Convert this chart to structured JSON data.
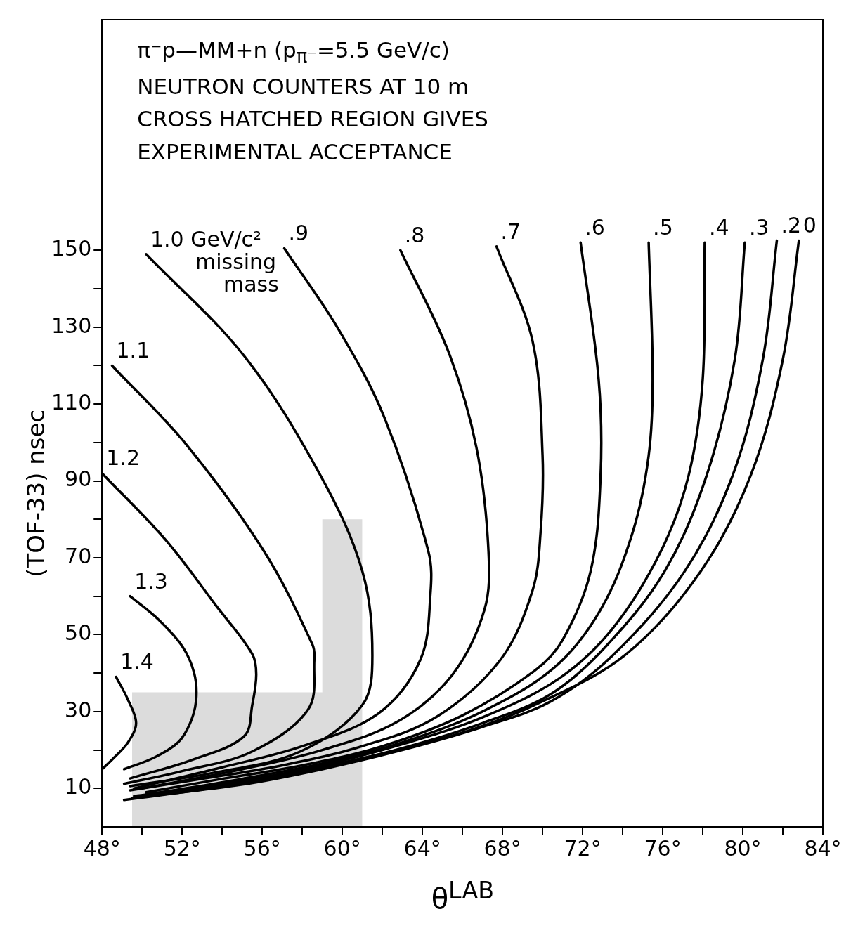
{
  "chart_data": {
    "type": "line",
    "title": "π⁻p—MM+n (p$_{π⁻}$=5.5 GeV/c)",
    "subtitle": "NEUTRON COUNTERS AT 10 m",
    "xlabel": "θ$^{LAB}$",
    "ylabel": "(TOF-33) nsec",
    "annotations": [
      "CROSS HATCHED REGION GIVES EXPERIMENTAL ACCEPTANCE"
    ],
    "xlim": [
      48,
      84
    ],
    "ylim": [
      0,
      210
    ],
    "xticks": [
      {
        "value": 48,
        "label": "48°"
      },
      {
        "value": 50,
        "label": null
      },
      {
        "value": 52,
        "label": "52°"
      },
      {
        "value": 54,
        "label": null
      },
      {
        "value": 56,
        "label": "56°"
      },
      {
        "value": 58,
        "label": null
      },
      {
        "value": 60,
        "label": "60°"
      },
      {
        "value": 62,
        "label": null
      },
      {
        "value": 64,
        "label": "64°"
      },
      {
        "value": 66,
        "label": null
      },
      {
        "value": 68,
        "label": "68°"
      },
      {
        "value": 70,
        "label": null
      },
      {
        "value": 72,
        "label": "72°"
      },
      {
        "value": 74,
        "label": null
      },
      {
        "value": 76,
        "label": "76°"
      },
      {
        "value": 78,
        "label": null
      },
      {
        "value": 80,
        "label": "80°"
      },
      {
        "value": 82,
        "label": null
      },
      {
        "value": 84,
        "label": "84°"
      }
    ],
    "yticks": [
      10,
      {
        "value": 20,
        "label": null
      },
      30,
      {
        "value": 40,
        "label": null
      },
      50,
      {
        "value": 60,
        "label": null
      },
      70,
      {
        "value": 80,
        "label": null
      },
      90,
      {
        "value": 100,
        "label": null
      },
      110,
      {
        "value": 120,
        "label": null
      },
      130,
      {
        "value": 140,
        "label": null
      },
      150
    ],
    "grid": false,
    "legend": false,
    "marker": "none",
    "line_style": "solid",
    "series": [
      {
        "type": "area",
        "color": "#dcdcdc",
        "x": [
          49.5,
          59,
          59,
          61,
          61
        ],
        "values": [
          35,
          35,
          80,
          80,
          0
        ]
      },
      {
        "name": "1.4",
        "color": "#000000",
        "x": [
          48.7,
          49.3,
          49.7,
          49.3,
          48.6,
          48
        ],
        "values": [
          39,
          33,
          27,
          22,
          18,
          15
        ]
      },
      {
        "name": "1.3",
        "color": "#000000",
        "x": [
          49.4,
          50.8,
          52,
          52.6,
          52.7,
          52.4,
          51.8,
          50.6,
          49.1
        ],
        "values": [
          60,
          54,
          47,
          40,
          33,
          27,
          22,
          18,
          15
        ]
      },
      {
        "name": "1.2",
        "color": "#000000",
        "x": [
          48,
          51.2,
          53.7,
          55.5,
          55.7,
          55.5,
          55.1,
          52.6,
          49.4
        ],
        "values": [
          92,
          74.5,
          57.5,
          45,
          39.6,
          31.7,
          23.6,
          17.6,
          12.6
        ]
      },
      {
        "name": "1.1",
        "color": "#000000",
        "x": [
          48.5,
          52.2,
          56.1,
          58.5,
          58.6,
          58.3,
          55.5,
          52,
          49.1
        ],
        "values": [
          120,
          99.5,
          71.6,
          47.5,
          43.5,
          30.6,
          19.6,
          14.5,
          11.2
        ]
      },
      {
        "name": "1.0 GeV/c² missing mass",
        "color": "#000000",
        "x": [
          50.2,
          55.1,
          58.9,
          61,
          61.5,
          61,
          57.9,
          53.5,
          49.4
        ],
        "values": [
          149,
          122.5,
          91.5,
          66.5,
          44.6,
          31.7,
          19.6,
          14,
          10.6
        ]
      },
      {
        "name": ".9",
        "color": "#000000",
        "x": [
          57.1,
          59.8,
          62.1,
          64.3,
          64.4,
          63.9,
          61.8,
          58,
          54,
          49.6
        ],
        "values": [
          150.5,
          129.5,
          106.5,
          71.6,
          60.6,
          43.5,
          29.5,
          21,
          15.5,
          10
        ]
      },
      {
        "name": ".8",
        "color": "#000000",
        "x": [
          62.9,
          65.3,
          66.7,
          67.3,
          67.1,
          65.5,
          62.8,
          59,
          55,
          50
        ],
        "values": [
          150,
          123.6,
          98.6,
          71.6,
          56.5,
          39.6,
          27.5,
          20,
          15,
          10
        ]
      },
      {
        "name": ".7",
        "color": "#000000",
        "x": [
          67.7,
          69.5,
          70,
          69.9,
          69.5,
          67.9,
          64.7,
          61,
          57,
          53,
          49.4
        ],
        "values": [
          151,
          126.4,
          96.6,
          76.6,
          61.5,
          43.5,
          28.6,
          21,
          16,
          12.5,
          9.5
        ]
      },
      {
        "name": ".6",
        "color": "#000000",
        "x": [
          71.9,
          72.8,
          72.9,
          72.4,
          71,
          69.6,
          66,
          62,
          58,
          54,
          50.2
        ],
        "values": [
          152,
          116.5,
          91.5,
          66.5,
          48.6,
          40.6,
          29,
          21,
          16,
          12.5,
          9
        ]
      },
      {
        "name": ".5",
        "color": "#000000",
        "x": [
          75.3,
          75.5,
          75.3,
          74.5,
          72.9,
          70.6,
          67,
          63,
          59,
          55,
          51
        ],
        "values": [
          152,
          116.5,
          96.6,
          76.6,
          56.5,
          41.5,
          30,
          22,
          16.5,
          12.5,
          9
        ]
      },
      {
        "name": ".4",
        "color": "#000000",
        "x": [
          78.1,
          78,
          77.3,
          75.9,
          73.5,
          70.8,
          67,
          63,
          59,
          55,
          50.2
        ],
        "values": [
          152,
          116.5,
          91.5,
          71.6,
          51.6,
          38.5,
          28.5,
          21.5,
          16,
          12,
          8.5
        ]
      },
      {
        "name": ".3",
        "color": "#000000",
        "x": [
          80.1,
          79.6,
          78.2,
          76.1,
          73.1,
          70.4,
          67,
          63,
          59,
          55,
          49.6
        ],
        "values": [
          152,
          121.6,
          91.5,
          66.5,
          46.6,
          34.5,
          27,
          20.5,
          15.5,
          11.5,
          8
        ]
      },
      {
        "name": ".2",
        "color": "#000000",
        "x": [
          81.7,
          81,
          79.5,
          77.1,
          73.5,
          70.4,
          67,
          63,
          59,
          55,
          49.5
        ],
        "values": [
          152.5,
          121.6,
          91.5,
          66.5,
          44.6,
          32.6,
          26,
          20,
          15,
          11,
          7.5
        ]
      },
      {
        "name": "0",
        "color": "#000000",
        "x": [
          82.8,
          82,
          80.4,
          77.9,
          74.1,
          69.6,
          66,
          62,
          58,
          54,
          49.1
        ],
        "values": [
          152.5,
          121.6,
          91.5,
          66.5,
          44.6,
          31.7,
          24.5,
          19,
          14.5,
          10.5,
          7
        ]
      }
    ]
  }
}
